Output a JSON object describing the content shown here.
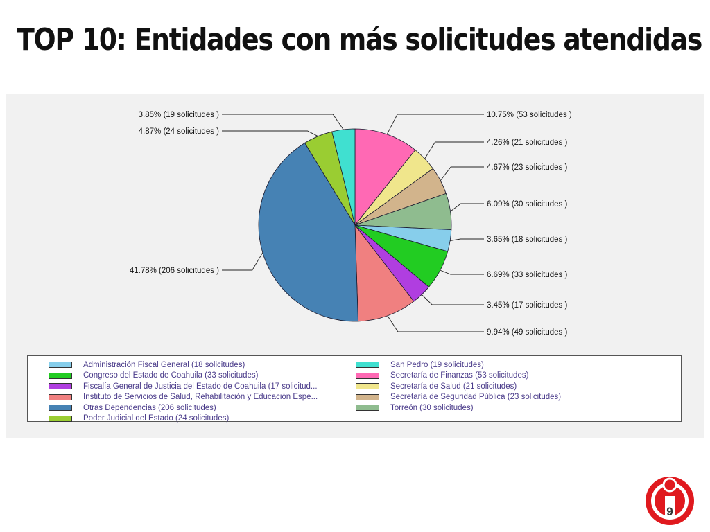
{
  "slide": {
    "title": "TOP 10: Entidades con más solicitudes atendidas",
    "page_number": "9"
  },
  "chart_data": {
    "type": "pie",
    "slices": [
      {
        "label": "Secretaría de Finanzas (53 solicitudes)",
        "value": 53,
        "percent_label": "10.75%  (53  solicitudes )",
        "color": "#ff69b4"
      },
      {
        "label": "Secretaría de Salud (21 solicitudes)",
        "value": 21,
        "percent_label": "4.26%  (21  solicitudes )",
        "color": "#f0e68c"
      },
      {
        "label": "Secretaría de Seguridad Pública (23 solicitudes)",
        "value": 23,
        "percent_label": "4.67%  (23  solicitudes )",
        "color": "#d2b48c"
      },
      {
        "label": "Torreón (30 solicitudes)",
        "value": 30,
        "percent_label": "6.09%  (30  solicitudes )",
        "color": "#8fbc8f"
      },
      {
        "label": "Administración Fiscal General (18 solicitudes)",
        "value": 18,
        "percent_label": "3.65%  (18  solicitudes )",
        "color": "#87ceeb"
      },
      {
        "label": "Congreso del Estado de Coahuila (33 solicitudes)",
        "value": 33,
        "percent_label": "6.69%  (33  solicitudes )",
        "color": "#22cc22"
      },
      {
        "label": "Fiscalía General de Justicia del Estado de Coahuila (17 solicitud...",
        "value": 17,
        "percent_label": "3.45%  (17  solicitudes )",
        "color": "#b03ee0"
      },
      {
        "label": "Instituto de Servicios de Salud, Rehabilitación y Educación Espe...",
        "value": 49,
        "percent_label": "9.94%  (49  solicitudes )",
        "color": "#f08080"
      },
      {
        "label": "Otras Dependencias (206 solicitudes)",
        "value": 206,
        "percent_label": "41.78%  (206  solicitudes )",
        "color": "#4682b4"
      },
      {
        "label": "Poder Judicial del Estado (24 solicitudes)",
        "value": 24,
        "percent_label": "4.87%  (24  solicitudes )",
        "color": "#9acd32"
      },
      {
        "label": "San Pedro (19 solicitudes)",
        "value": 19,
        "percent_label": "3.85%  (19  solicitudes )",
        "color": "#40e0d0"
      }
    ],
    "legend": {
      "placement": "bottom",
      "left_column": [
        {
          "text": "Administración Fiscal General (18  solicitudes)",
          "color": "#87ceeb"
        },
        {
          "text": "Congreso del Estado de Coahuila (33  solicitudes)",
          "color": "#22cc22"
        },
        {
          "text": "Fiscalía General de Justicia del Estado de Coahuila (17  solicitud...",
          "color": "#b03ee0"
        },
        {
          "text": "Instituto de Servicios de Salud, Rehabilitación y Educación Espe...",
          "color": "#f08080"
        },
        {
          "text": "Otras Dependencias (206  solicitudes)",
          "color": "#4682b4"
        },
        {
          "text": "Poder Judicial del Estado (24  solicitudes)",
          "color": "#9acd32"
        }
      ],
      "right_column": [
        {
          "text": "San Pedro (19  solicitudes)",
          "color": "#40e0d0"
        },
        {
          "text": "Secretaría de Finanzas (53  solicitudes)",
          "color": "#ff69b4"
        },
        {
          "text": "Secretaría de Salud (21  solicitudes)",
          "color": "#f0e68c"
        },
        {
          "text": "Secretaría de Seguridad Pública (23  solicitudes)",
          "color": "#d2b48c"
        },
        {
          "text": "Torreón (30  solicitudes)",
          "color": "#8fbc8f"
        }
      ]
    }
  }
}
